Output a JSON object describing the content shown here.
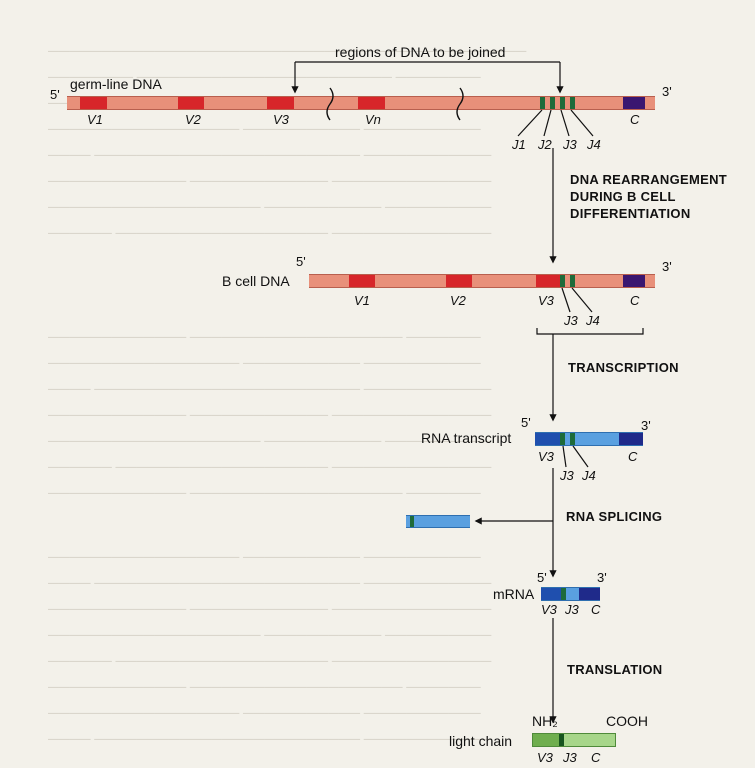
{
  "header": {
    "regions_label": "regions of DNA to be joined"
  },
  "germline": {
    "label": "germ-line DNA",
    "five": "5'",
    "three": "3'",
    "segments": [
      "V1",
      "V2",
      "V3",
      "Vn",
      "J1",
      "J2",
      "J3",
      "J4",
      "C"
    ]
  },
  "steps": {
    "rearrangement": [
      "DNA REARRANGEMENT",
      "DURING B CELL",
      "DIFFERENTIATION"
    ],
    "transcription": "TRANSCRIPTION",
    "splicing": "RNA SPLICING",
    "translation": "TRANSLATION"
  },
  "bcell": {
    "label": "B cell DNA",
    "five": "5'",
    "three": "3'",
    "segments": [
      "V1",
      "V2",
      "V3",
      "J3",
      "J4",
      "C"
    ]
  },
  "rna": {
    "label": "RNA transcript",
    "five": "5'",
    "three": "3'",
    "segments": [
      "V3",
      "J3",
      "J4",
      "C"
    ]
  },
  "mrna": {
    "label": "mRNA",
    "five": "5'",
    "three": "3'",
    "segments": [
      "V3",
      "J3",
      "C"
    ]
  },
  "protein": {
    "label": "light chain",
    "nh2": "NH₂",
    "cooh": "COOH",
    "segments": [
      "V3",
      "J3",
      "C"
    ]
  },
  "colors": {
    "dna_strand": "#e8907a",
    "v_segment": "#d7262a",
    "j_segment": "#1e6b3a",
    "c_segment": "#3a1670",
    "rna_strand": "#5aa0e0",
    "rna_dark": "#1f4fae",
    "protein": "#9bd07a",
    "protein_dark": "#17551f"
  }
}
